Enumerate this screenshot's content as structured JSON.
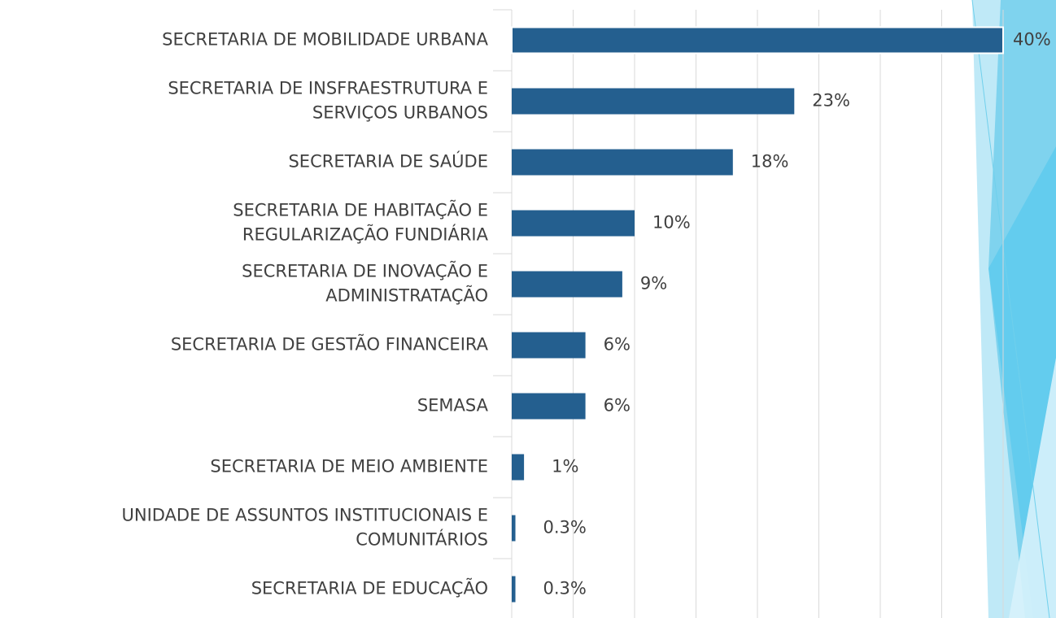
{
  "chart_data": {
    "type": "bar",
    "orientation": "horizontal",
    "categories": [
      "SECRETARIA DE MOBILIDADE URBANA",
      "SECRETARIA DE INSFRAESTRUTURA E\nSERVIÇOS URBANOS",
      "SECRETARIA DE SAÚDE",
      "SECRETARIA DE HABITAÇÃO E\nREGULARIZAÇÃO FUNDIÁRIA",
      "SECRETARIA DE INOVAÇÃO E\nADMINISTRATAÇÃO",
      "SECRETARIA DE GESTÃO FINANCEIRA",
      "SEMASA",
      "SECRETARIA DE MEIO AMBIENTE",
      "UNIDADE DE ASSUNTOS INSTITUCIONAIS E\nCOMUNITÁRIOS",
      "SECRETARIA DE EDUCAÇÃO"
    ],
    "values": [
      40,
      23,
      18,
      10,
      9,
      6,
      6,
      1,
      0.3,
      0.3
    ],
    "value_labels": [
      "40%",
      "23%",
      "18%",
      "10%",
      "9%",
      "6%",
      "6%",
      "1%",
      "0.3%",
      "0.3%"
    ],
    "color": "#245f8f",
    "xlim": [
      0,
      40
    ],
    "xticks": [
      0,
      5,
      10,
      15,
      20,
      25,
      30,
      35,
      40
    ],
    "grid": true
  }
}
